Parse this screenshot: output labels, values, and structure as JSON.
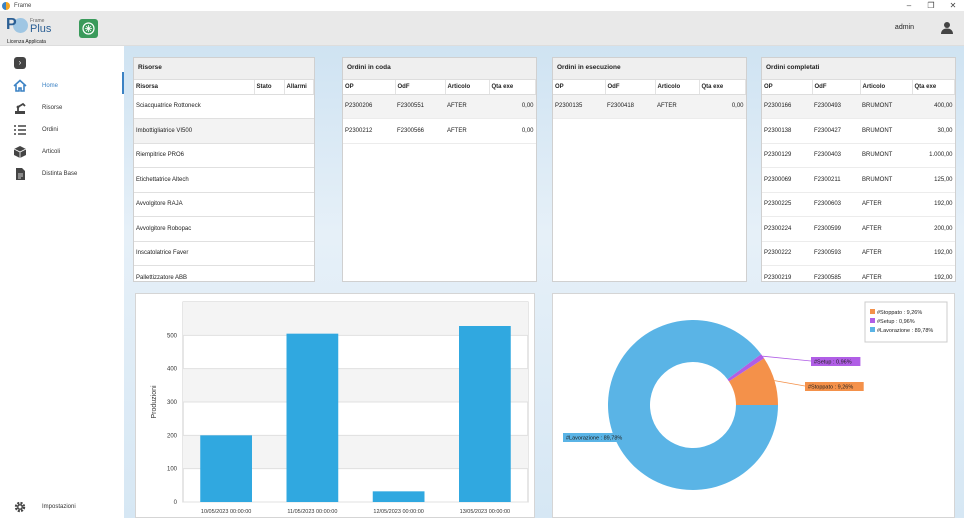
{
  "window": {
    "title": "Frame",
    "minimize": "–",
    "maximize": "❐",
    "close": "✕"
  },
  "header": {
    "logo_frame": "Frame",
    "logo_plus": "Plus",
    "logo_license": "Licenza Applicata",
    "user": "admin"
  },
  "sidebar": {
    "collapse": "›",
    "items": [
      {
        "label": "Home",
        "icon": "home-icon"
      },
      {
        "label": "Risorse",
        "icon": "robot-arm-icon"
      },
      {
        "label": "Ordini",
        "icon": "list-icon"
      },
      {
        "label": "Articoli",
        "icon": "box-icon"
      },
      {
        "label": "Distinta Base",
        "icon": "document-icon"
      }
    ],
    "settings": "Impostazioni"
  },
  "risorse": {
    "title": "Risorse",
    "columns": [
      "Risorsa",
      "Stato",
      "Allarmi"
    ],
    "rows": [
      "Sciacquatrice Rottoneck",
      "Imbottigliatrice VI500",
      "Riempitrice PRO6",
      "Etichettatrice Altech",
      "Avvolgitore RAJA",
      "Avvolgitore Robopac",
      "Inscatolatrice Faver",
      "Pallettizzatore ABB"
    ]
  },
  "coda": {
    "title": "Ordini in coda",
    "columns": [
      "OP",
      "OdF",
      "Articolo",
      "Qta exe"
    ],
    "rows": [
      [
        "P2300206",
        "F2300551",
        "AFTER",
        "0,00"
      ],
      [
        "P2300212",
        "F2300566",
        "AFTER",
        "0,00"
      ]
    ]
  },
  "esecuzione": {
    "title": "Ordini in esecuzione",
    "columns": [
      "OP",
      "OdF",
      "Articolo",
      "Qta exe"
    ],
    "rows": [
      [
        "P2300135",
        "F2300418",
        "AFTER",
        "0,00"
      ]
    ]
  },
  "completati": {
    "title": "Ordini completati",
    "columns": [
      "OP",
      "OdF",
      "Articolo",
      "Qta exe"
    ],
    "rows": [
      [
        "P2300166",
        "F2300493",
        "BRUMONT",
        "400,00"
      ],
      [
        "P2300138",
        "F2300427",
        "BRUMONT",
        "30,00"
      ],
      [
        "P2300129",
        "F2300403",
        "BRUMONT",
        "1.000,00"
      ],
      [
        "P2300069",
        "F2300211",
        "BRUMONT",
        "125,00"
      ],
      [
        "P2300225",
        "F2300603",
        "AFTER",
        "192,00"
      ],
      [
        "P2300224",
        "F2300599",
        "AFTER",
        "200,00"
      ],
      [
        "P2300222",
        "F2300593",
        "AFTER",
        "192,00"
      ],
      [
        "P2300219",
        "F2300585",
        "AFTER",
        "192,00"
      ]
    ]
  },
  "chart_data": [
    {
      "type": "bar",
      "categories": [
        "10/05/2023 00:00:00",
        "11/05/2023 00:00:00",
        "12/05/2023 00:00:00",
        "13/05/2023 00:00:00"
      ],
      "values": [
        200,
        505,
        32,
        528
      ],
      "ylabel": "Produzioni",
      "ylim": [
        0,
        600
      ],
      "yticks": [
        0,
        100,
        200,
        300,
        400,
        500
      ],
      "grid": true,
      "color": "#30a8e0"
    },
    {
      "type": "pie",
      "donut": true,
      "series": [
        {
          "name": "#Lavorazione",
          "value": 89.78,
          "label": "#Lavorazione : 89,78%",
          "color": "#5ab4e6"
        },
        {
          "name": "#Stoppato",
          "value": 9.26,
          "label": "#Stoppato : 9,26%",
          "color": "#f4914a"
        },
        {
          "name": "#Setup",
          "value": 0.96,
          "label": "#Setup : 0,96%",
          "color": "#b05ee6"
        }
      ],
      "legend": [
        "#Stoppato : 9,26%",
        "#Setup : 0,96%",
        "#Lavorazione : 89,78%"
      ],
      "legend_position": "top-right"
    }
  ]
}
